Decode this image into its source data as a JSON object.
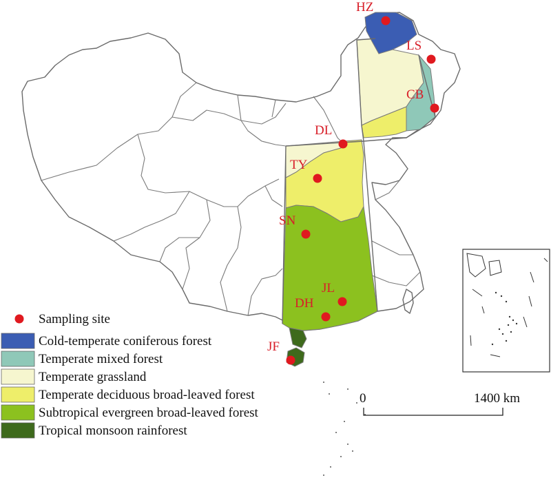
{
  "colors": {
    "site": "#e0191f",
    "site_label": "#d81e28",
    "cold_temperate_coniferous": "#3b5db3",
    "temperate_mixed": "#8fc8b8",
    "temperate_grassland": "#f6f6cf",
    "temperate_deciduous": "#eeee6a",
    "subtropical_evergreen": "#8cc11f",
    "tropical_rainforest": "#3e6a1c",
    "boundary": "#7a7a7a"
  },
  "sites": [
    {
      "id": "HZ",
      "label": "HZ"
    },
    {
      "id": "LS",
      "label": "LS"
    },
    {
      "id": "CB",
      "label": "CB"
    },
    {
      "id": "DL",
      "label": "DL"
    },
    {
      "id": "TY",
      "label": "TY"
    },
    {
      "id": "SN",
      "label": "SN"
    },
    {
      "id": "JL",
      "label": "JL"
    },
    {
      "id": "DH",
      "label": "DH"
    },
    {
      "id": "JF",
      "label": "JF"
    }
  ],
  "legend": {
    "sampling_site": "Sampling site",
    "cold_temperate": "Cold-temperate coniferous forest",
    "temperate_mixed": "Temperate mixed forest",
    "temperate_grassland": "Temperate grassland",
    "temperate_deciduous": "Temperate deciduous broad-leaved forest",
    "subtropical": "Subtropical evergreen broad-leaved forest",
    "tropical": "Tropical monsoon rainforest"
  },
  "scale_bar": {
    "start_label": "0",
    "end_label": "1400 km"
  },
  "inset": {
    "description_icon": "south-china-sea-inset"
  }
}
